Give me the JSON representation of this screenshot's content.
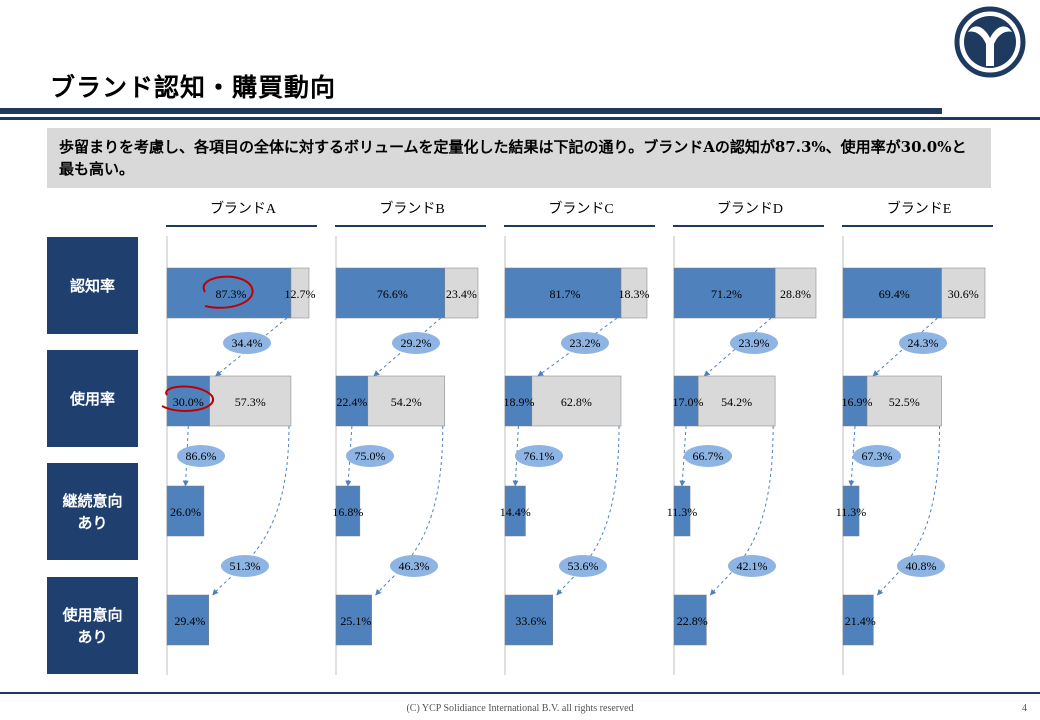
{
  "page": {
    "title": "ブランド認知・購買動向",
    "summary": "歩留まりを考慮し、各項目の全体に対するボリュームを定量化した結果は下記の通り。ブランドAの認知が87.3%、使用率が30.0%と最も高い。",
    "copyright": "(C) YCP Solidiance  International B.V. all rights reserved",
    "page_number": "4"
  },
  "colors": {
    "navy": "#1f3a5f",
    "label_bg": "#1f3f6e",
    "bar_blue": "#4f81bd",
    "bar_gray": "#d9d9d9",
    "bubble": "#8eb4e3",
    "highlight_red": "#c00000"
  },
  "row_labels": [
    "認知率",
    "使用率",
    "継続意向\nあり",
    "使用意向\nあり"
  ],
  "chart_data": {
    "type": "bar",
    "brands": [
      "ブランドA",
      "ブランドB",
      "ブランドC",
      "ブランドD",
      "ブランドE"
    ],
    "series": [
      {
        "name": "認知率",
        "values": [
          87.3,
          76.6,
          81.7,
          71.2,
          69.4
        ],
        "remainder": [
          12.7,
          23.4,
          18.3,
          28.8,
          30.6
        ]
      },
      {
        "name": "使用率",
        "values": [
          30.0,
          22.4,
          18.9,
          17.0,
          16.9
        ],
        "remainder": [
          57.3,
          54.2,
          62.8,
          54.2,
          52.5
        ]
      },
      {
        "name": "継続意向あり",
        "values": [
          26.0,
          16.8,
          14.4,
          11.3,
          11.3
        ]
      },
      {
        "name": "使用意向あり",
        "values": [
          29.4,
          25.1,
          33.6,
          22.8,
          21.4
        ]
      }
    ],
    "conversion": {
      "awareness_to_usage": [
        34.4,
        29.2,
        23.2,
        23.9,
        24.3
      ],
      "usage_to_continue": [
        86.6,
        75.0,
        76.1,
        66.7,
        67.3
      ],
      "nonuser_to_intent": [
        51.3,
        46.3,
        53.6,
        42.1,
        40.8
      ]
    },
    "highlighted": [
      {
        "brand": "ブランドA",
        "series": "認知率"
      },
      {
        "brand": "ブランドA",
        "series": "使用率"
      }
    ],
    "xlim": [
      0,
      100
    ]
  }
}
